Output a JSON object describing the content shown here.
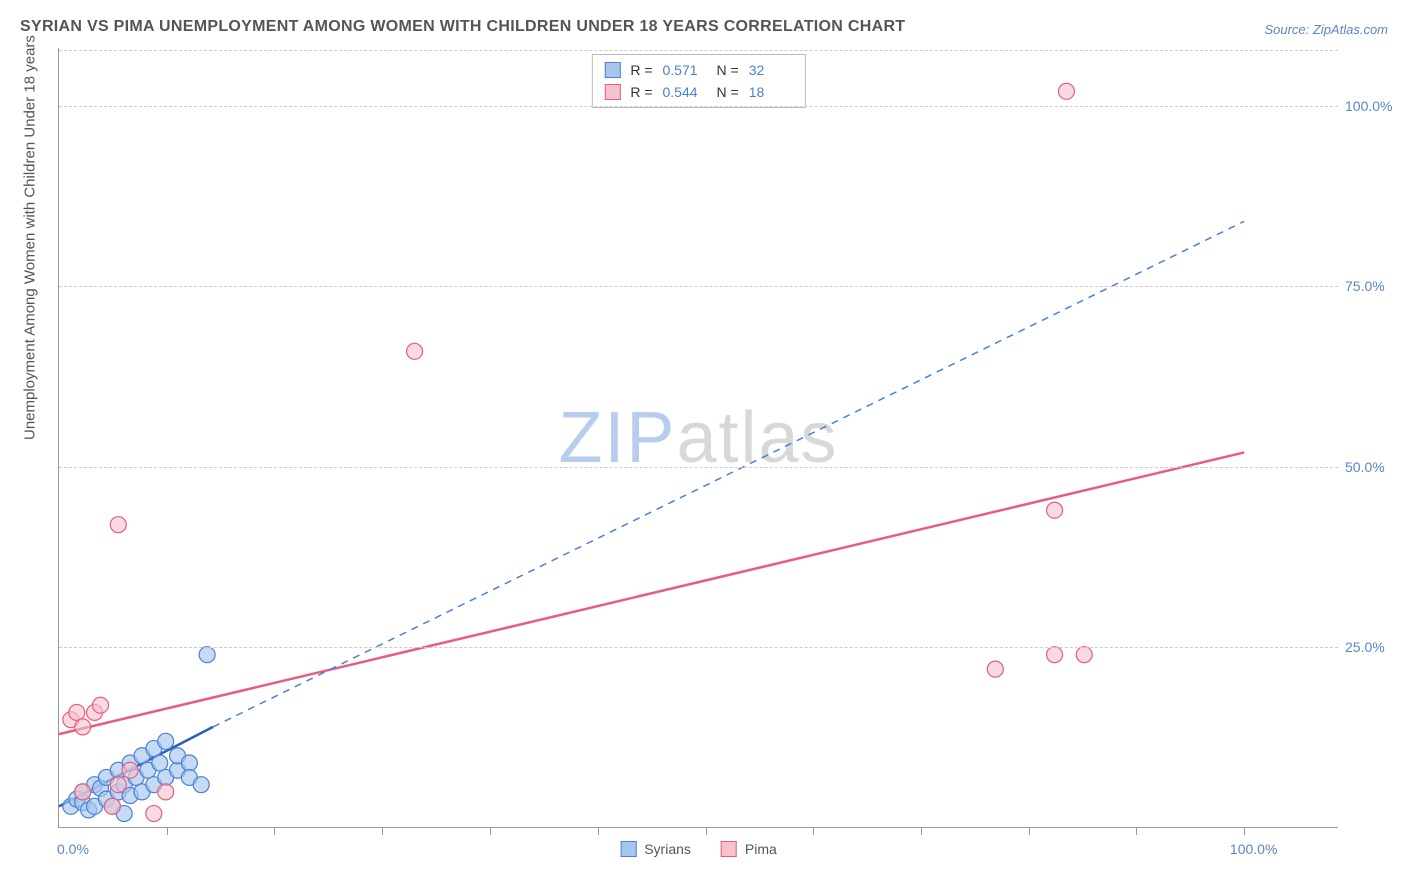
{
  "title": "SYRIAN VS PIMA UNEMPLOYMENT AMONG WOMEN WITH CHILDREN UNDER 18 YEARS CORRELATION CHART",
  "source": "Source: ZipAtlas.com",
  "y_axis_label": "Unemployment Among Women with Children Under 18 years",
  "watermark": {
    "part1": "ZIP",
    "part2": "atlas"
  },
  "chart": {
    "type": "scatter",
    "background_color": "#ffffff",
    "grid_color": "#cccccc",
    "axis_color": "#999999",
    "text_color": "#555555",
    "accent_color": "#5a86c5",
    "xlim": [
      0,
      108
    ],
    "ylim": [
      0,
      108
    ],
    "y_ticks": [
      {
        "value": 25,
        "label": "25.0%"
      },
      {
        "value": 50,
        "label": "50.0%"
      },
      {
        "value": 75,
        "label": "75.0%"
      },
      {
        "value": 100,
        "label": "100.0%"
      }
    ],
    "x_ticks_minor": [
      9.09,
      18.18,
      27.27,
      36.36,
      45.45,
      54.55,
      63.64,
      72.73,
      81.82,
      90.91,
      100
    ],
    "x_labels": [
      {
        "value": 0,
        "label": "0.0%"
      },
      {
        "value": 100,
        "label": "100.0%"
      }
    ],
    "series": [
      {
        "name": "Syrians",
        "marker_fill": "#a7c6ed",
        "marker_stroke": "#4a81d4",
        "marker_opacity": 0.65,
        "marker_radius": 8,
        "points": [
          [
            1,
            3
          ],
          [
            1.5,
            4
          ],
          [
            2,
            3.5
          ],
          [
            2,
            5
          ],
          [
            2.5,
            2.5
          ],
          [
            3,
            3
          ],
          [
            3,
            6
          ],
          [
            3.5,
            5.5
          ],
          [
            4,
            4
          ],
          [
            4,
            7
          ],
          [
            4.5,
            3
          ],
          [
            5,
            5
          ],
          [
            5,
            8
          ],
          [
            5.5,
            6
          ],
          [
            5.5,
            2
          ],
          [
            6,
            4.5
          ],
          [
            6,
            9
          ],
          [
            6.5,
            7
          ],
          [
            7,
            10
          ],
          [
            7,
            5
          ],
          [
            7.5,
            8
          ],
          [
            8,
            11
          ],
          [
            8,
            6
          ],
          [
            8.5,
            9
          ],
          [
            9,
            7
          ],
          [
            9,
            12
          ],
          [
            10,
            8
          ],
          [
            10,
            10
          ],
          [
            11,
            9
          ],
          [
            11,
            7
          ],
          [
            12,
            6
          ],
          [
            12.5,
            24
          ]
        ],
        "trend_solid": {
          "x1": 0,
          "y1": 3,
          "x2": 13,
          "y2": 14,
          "color": "#2b5fb5",
          "width": 2.5
        },
        "trend_dash": {
          "x1": 13,
          "y1": 14,
          "x2": 100,
          "y2": 84,
          "color": "#4a81d4",
          "width": 1.5
        }
      },
      {
        "name": "Pima",
        "marker_fill": "#f5c2cd",
        "marker_stroke": "#e75d81",
        "marker_opacity": 0.6,
        "marker_radius": 8,
        "points": [
          [
            1,
            15
          ],
          [
            1.5,
            16
          ],
          [
            2,
            14
          ],
          [
            2,
            5
          ],
          [
            3,
            16
          ],
          [
            3.5,
            17
          ],
          [
            4.5,
            3
          ],
          [
            5,
            6
          ],
          [
            5,
            42
          ],
          [
            6,
            8
          ],
          [
            8,
            2
          ],
          [
            9,
            5
          ],
          [
            30,
            66
          ],
          [
            79,
            22
          ],
          [
            84,
            24
          ],
          [
            86.5,
            24
          ],
          [
            85,
            102
          ],
          [
            84,
            44
          ]
        ],
        "trend_solid": {
          "x1": 0,
          "y1": 13,
          "x2": 100,
          "y2": 52,
          "color": "#e75d81",
          "width": 2.5
        }
      }
    ],
    "legend_top": [
      {
        "swatch_fill": "#a7c6ed",
        "swatch_stroke": "#4a81d4",
        "r": "0.571",
        "n": "32"
      },
      {
        "swatch_fill": "#f5c2cd",
        "swatch_stroke": "#e75d81",
        "r": "0.544",
        "n": "18"
      }
    ],
    "legend_bottom": [
      {
        "swatch_fill": "#a7c6ed",
        "swatch_stroke": "#4a81d4",
        "label": "Syrians"
      },
      {
        "swatch_fill": "#f5c2cd",
        "swatch_stroke": "#e75d81",
        "label": "Pima"
      }
    ]
  }
}
